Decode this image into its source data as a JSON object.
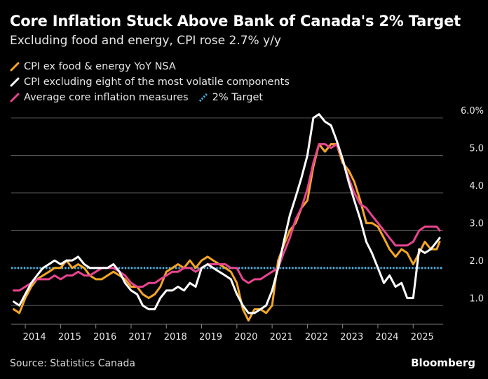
{
  "title": "Core Inflation Stuck Above Bank of Canada's 2% Target",
  "subtitle": "Excluding food and energy, CPI rose 2.7% y/y",
  "source": "Source: Statistics Canada",
  "brand": "Bloomberg",
  "chart_data": {
    "type": "line",
    "ylim": [
      0.5,
      6.0
    ],
    "yticks": [
      1.0,
      2.0,
      3.0,
      4.0,
      5.0,
      6.0
    ],
    "ytick_labels": [
      "1.0",
      "2.0",
      "3.0",
      "4.0",
      "5.0",
      "6.0%"
    ],
    "xlim": [
      2013.6,
      2025.85
    ],
    "xticks": [
      2014,
      2015,
      2016,
      2017,
      2018,
      2019,
      2020,
      2021,
      2022,
      2023,
      2024,
      2025
    ],
    "xtick_labels": [
      "2014",
      "2015",
      "2016",
      "2017",
      "2018",
      "2019",
      "2020",
      "2021",
      "2022",
      "2023",
      "2024",
      "2025"
    ],
    "grid": true,
    "legend_placement": "top-left",
    "target": {
      "name": "2% Target",
      "value": 2.0,
      "color": "#4ab8f0"
    },
    "series": [
      {
        "name": "CPI ex food & energy YoY NSA",
        "color": "#f5a623",
        "x": [
          2013.67,
          2013.83,
          2014.0,
          2014.17,
          2014.33,
          2014.5,
          2014.67,
          2014.83,
          2015.0,
          2015.17,
          2015.33,
          2015.5,
          2015.67,
          2015.83,
          2016.0,
          2016.17,
          2016.33,
          2016.5,
          2016.67,
          2016.83,
          2017.0,
          2017.17,
          2017.33,
          2017.5,
          2017.67,
          2017.83,
          2018.0,
          2018.17,
          2018.33,
          2018.5,
          2018.67,
          2018.83,
          2019.0,
          2019.17,
          2019.33,
          2019.5,
          2019.67,
          2019.83,
          2020.0,
          2020.17,
          2020.33,
          2020.5,
          2020.67,
          2020.83,
          2021.0,
          2021.17,
          2021.33,
          2021.5,
          2021.67,
          2021.83,
          2022.0,
          2022.17,
          2022.33,
          2022.5,
          2022.67,
          2022.83,
          2023.0,
          2023.17,
          2023.33,
          2023.5,
          2023.67,
          2023.83,
          2024.0,
          2024.17,
          2024.33,
          2024.5,
          2024.67,
          2024.83,
          2025.0,
          2025.17,
          2025.33,
          2025.5,
          2025.67,
          2025.75
        ],
        "values": [
          0.9,
          0.8,
          1.2,
          1.5,
          1.7,
          1.8,
          1.9,
          2.0,
          2.0,
          2.2,
          2.0,
          2.1,
          2.0,
          1.8,
          1.7,
          1.7,
          1.8,
          1.9,
          1.8,
          1.7,
          1.5,
          1.5,
          1.3,
          1.2,
          1.3,
          1.5,
          1.9,
          2.0,
          2.1,
          2.0,
          2.2,
          2.0,
          2.2,
          2.3,
          2.2,
          2.1,
          2.0,
          1.9,
          1.6,
          0.9,
          0.6,
          0.9,
          0.9,
          0.8,
          1.0,
          2.2,
          2.6,
          3.0,
          3.2,
          3.6,
          3.8,
          4.7,
          5.3,
          5.1,
          5.3,
          5.3,
          4.8,
          4.6,
          4.3,
          3.8,
          3.2,
          3.2,
          3.1,
          2.8,
          2.5,
          2.3,
          2.5,
          2.4,
          2.1,
          2.4,
          2.7,
          2.5,
          2.5,
          2.7
        ]
      },
      {
        "name": "CPI excluding eight of the most volatile components",
        "color": "#ffffff",
        "x": [
          2013.67,
          2013.83,
          2014.0,
          2014.17,
          2014.33,
          2014.5,
          2014.67,
          2014.83,
          2015.0,
          2015.17,
          2015.33,
          2015.5,
          2015.67,
          2015.83,
          2016.0,
          2016.17,
          2016.33,
          2016.5,
          2016.67,
          2016.83,
          2017.0,
          2017.17,
          2017.33,
          2017.5,
          2017.67,
          2017.83,
          2018.0,
          2018.17,
          2018.33,
          2018.5,
          2018.67,
          2018.83,
          2019.0,
          2019.17,
          2019.33,
          2019.5,
          2019.67,
          2019.83,
          2020.0,
          2020.17,
          2020.33,
          2020.5,
          2020.67,
          2020.83,
          2021.0,
          2021.17,
          2021.33,
          2021.5,
          2021.67,
          2021.83,
          2022.0,
          2022.17,
          2022.33,
          2022.5,
          2022.67,
          2022.83,
          2023.0,
          2023.17,
          2023.33,
          2023.5,
          2023.67,
          2023.83,
          2024.0,
          2024.17,
          2024.33,
          2024.5,
          2024.67,
          2024.83,
          2025.0,
          2025.17,
          2025.33,
          2025.5,
          2025.67,
          2025.75
        ],
        "values": [
          1.1,
          1.0,
          1.3,
          1.6,
          1.8,
          2.0,
          2.1,
          2.2,
          2.1,
          2.2,
          2.2,
          2.3,
          2.1,
          2.0,
          2.0,
          2.0,
          2.0,
          2.1,
          1.9,
          1.6,
          1.4,
          1.3,
          1.0,
          0.9,
          0.9,
          1.2,
          1.4,
          1.4,
          1.5,
          1.4,
          1.6,
          1.5,
          2.0,
          2.1,
          2.0,
          1.9,
          1.8,
          1.7,
          1.3,
          1.0,
          0.8,
          0.8,
          0.9,
          1.0,
          1.4,
          2.0,
          2.7,
          3.4,
          3.9,
          4.4,
          5.0,
          6.0,
          6.1,
          5.9,
          5.8,
          5.4,
          4.9,
          4.3,
          3.8,
          3.3,
          2.7,
          2.4,
          2.0,
          1.6,
          1.8,
          1.5,
          1.6,
          1.2,
          1.2,
          2.5,
          2.4,
          2.5,
          2.7,
          2.8
        ]
      },
      {
        "name": "Average core inflation measures",
        "color": "#e8448f",
        "x": [
          2013.67,
          2013.83,
          2014.0,
          2014.17,
          2014.33,
          2014.5,
          2014.67,
          2014.83,
          2015.0,
          2015.17,
          2015.33,
          2015.5,
          2015.67,
          2015.83,
          2016.0,
          2016.17,
          2016.33,
          2016.5,
          2016.67,
          2016.83,
          2017.0,
          2017.17,
          2017.33,
          2017.5,
          2017.67,
          2017.83,
          2018.0,
          2018.17,
          2018.33,
          2018.5,
          2018.67,
          2018.83,
          2019.0,
          2019.17,
          2019.33,
          2019.5,
          2019.67,
          2019.83,
          2020.0,
          2020.17,
          2020.33,
          2020.5,
          2020.67,
          2020.83,
          2021.0,
          2021.17,
          2021.33,
          2021.5,
          2021.67,
          2021.83,
          2022.0,
          2022.17,
          2022.33,
          2022.5,
          2022.67,
          2022.83,
          2023.0,
          2023.17,
          2023.33,
          2023.5,
          2023.67,
          2023.83,
          2024.0,
          2024.17,
          2024.33,
          2024.5,
          2024.67,
          2024.83,
          2025.0,
          2025.17,
          2025.33,
          2025.5,
          2025.67,
          2025.75
        ],
        "values": [
          1.4,
          1.4,
          1.5,
          1.6,
          1.7,
          1.7,
          1.7,
          1.8,
          1.7,
          1.8,
          1.8,
          1.9,
          1.8,
          1.8,
          1.9,
          2.0,
          2.0,
          2.0,
          1.9,
          1.8,
          1.6,
          1.5,
          1.5,
          1.6,
          1.6,
          1.7,
          1.8,
          1.9,
          1.9,
          2.0,
          2.0,
          1.9,
          2.0,
          2.1,
          2.1,
          2.1,
          2.1,
          2.0,
          2.0,
          1.7,
          1.6,
          1.7,
          1.7,
          1.8,
          1.9,
          2.0,
          2.4,
          2.8,
          3.3,
          3.6,
          4.1,
          4.8,
          5.3,
          5.3,
          5.2,
          5.3,
          4.9,
          4.4,
          4.0,
          3.7,
          3.6,
          3.4,
          3.2,
          3.0,
          2.8,
          2.6,
          2.6,
          2.6,
          2.7,
          3.0,
          3.1,
          3.1,
          3.1,
          3.0
        ]
      }
    ]
  }
}
